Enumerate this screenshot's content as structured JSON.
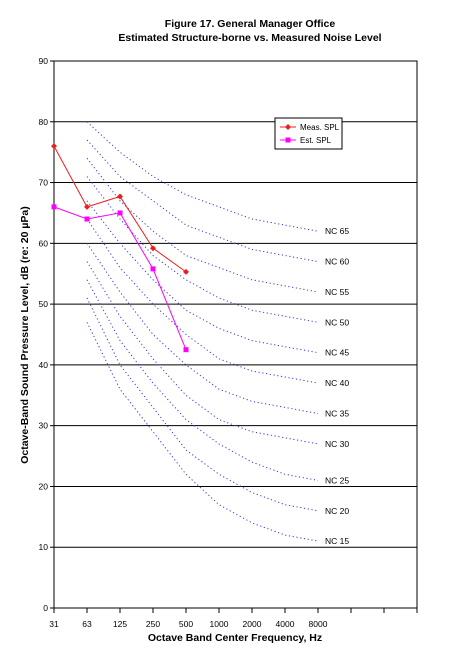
{
  "chart_data": {
    "type": "line",
    "title": "Figure 17. General Manager Office",
    "subtitle": "Estimated Structure-borne vs. Measured Noise Level",
    "xlabel": "Octave Band Center Frequency, Hz",
    "ylabel": "Octave-Band Sound Pressure Level, dB (re: 20 µPa)",
    "x_ticks": [
      "31",
      "63",
      "125",
      "250",
      "500",
      "1000",
      "2000",
      "4000",
      "8000"
    ],
    "ylim": [
      0,
      90
    ],
    "y_ticks": [
      0,
      10,
      20,
      30,
      40,
      50,
      60,
      70,
      80,
      90
    ],
    "grid": "horizontal",
    "legend_position": "upper-right",
    "series": [
      {
        "name": "Meas. SPL",
        "color": "#e8201f",
        "marker": "diamond",
        "x_index": [
          0,
          1,
          2,
          3,
          4
        ],
        "values": [
          76,
          66,
          67.7,
          59.2,
          55.3
        ]
      },
      {
        "name": "Est. SPL",
        "color": "#ff00ff",
        "marker": "square",
        "x_index": [
          0,
          1,
          2,
          3,
          4
        ],
        "values": [
          66,
          64,
          65,
          55.8,
          42.5
        ]
      }
    ],
    "nc_curves": {
      "color": "#3a3ad8",
      "x_index": [
        1,
        2,
        3,
        4,
        5,
        6,
        7,
        8
      ],
      "curves": [
        {
          "label": "NC 65",
          "values": [
            80,
            75,
            71,
            68,
            66,
            64,
            63,
            62
          ]
        },
        {
          "label": "NC 60",
          "values": [
            77,
            71,
            67,
            63,
            61,
            59,
            58,
            57
          ]
        },
        {
          "label": "NC 55",
          "values": [
            74,
            67,
            62,
            58,
            56,
            54,
            53,
            52
          ]
        },
        {
          "label": "NC 50",
          "values": [
            71,
            64,
            58,
            54,
            51,
            49,
            48,
            47
          ]
        },
        {
          "label": "NC 45",
          "values": [
            67,
            60,
            54,
            49,
            46,
            44,
            43,
            42
          ]
        },
        {
          "label": "NC 40",
          "values": [
            64,
            56,
            50,
            45,
            41,
            39,
            38,
            37
          ]
        },
        {
          "label": "NC 35",
          "values": [
            60,
            52,
            45,
            40,
            36,
            34,
            33,
            32
          ]
        },
        {
          "label": "NC 30",
          "values": [
            57,
            48,
            41,
            35,
            31,
            29,
            28,
            27
          ]
        },
        {
          "label": "NC 25",
          "values": [
            54,
            44,
            37,
            31,
            27,
            24,
            22,
            21
          ]
        },
        {
          "label": "NC 20",
          "values": [
            51,
            40,
            33,
            26,
            22,
            19,
            17,
            16
          ]
        },
        {
          "label": "NC 15",
          "values": [
            47,
            36,
            29,
            22,
            17,
            14,
            12,
            11
          ]
        }
      ]
    }
  }
}
